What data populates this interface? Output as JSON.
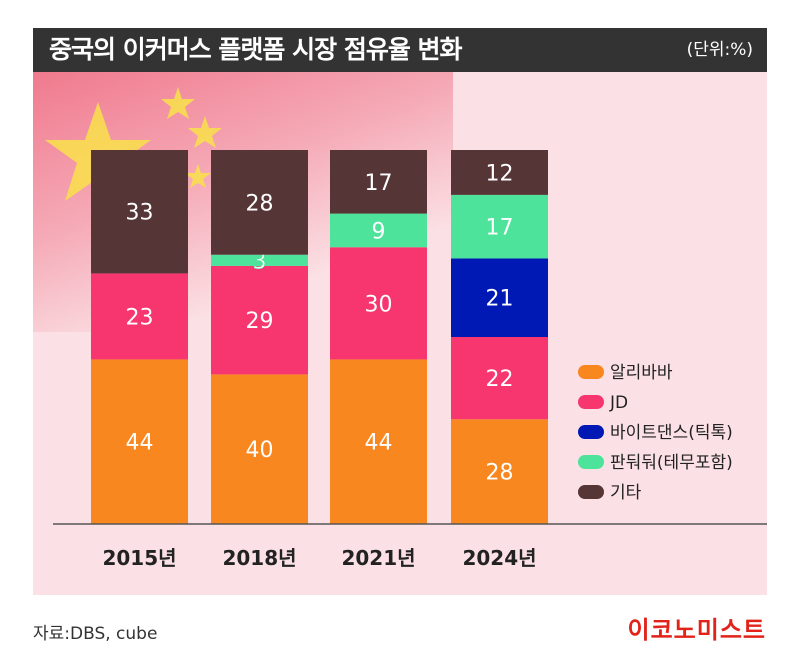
{
  "header": {
    "title": "중국의 이커머스 플랫폼 시장 점유율 변화",
    "unit": "(단위:%)"
  },
  "footer": {
    "source": "자료:DBS, cube",
    "logo": "이코노미스트"
  },
  "colors": {
    "alibaba": "#f8871f",
    "jd": "#f7366f",
    "bytedance": "#0019b5",
    "pinduoduo": "#4ee39b",
    "other": "#563537",
    "title_bar": "#333333",
    "plot_background": "#fbe1e5"
  },
  "chart_data": {
    "type": "bar",
    "stacked": true,
    "categories": [
      "2015년",
      "2018년",
      "2021년",
      "2024년"
    ],
    "series": [
      {
        "name": "알리바바",
        "color": "#f8871f",
        "values": [
          44,
          40,
          44,
          28
        ]
      },
      {
        "name": "JD",
        "color": "#f7366f",
        "values": [
          23,
          29,
          30,
          22
        ]
      },
      {
        "name": "바이트댄스(틱톡)",
        "color": "#0019b5",
        "values": [
          0,
          0,
          0,
          21
        ]
      },
      {
        "name": "판둬둬(테무포함)",
        "color": "#4ee39b",
        "values": [
          0,
          3,
          9,
          17
        ]
      },
      {
        "name": "기타",
        "color": "#563537",
        "values": [
          33,
          28,
          17,
          12
        ]
      }
    ],
    "ylim": [
      0,
      100
    ],
    "grid": false,
    "legend_position": "bottom-right"
  }
}
